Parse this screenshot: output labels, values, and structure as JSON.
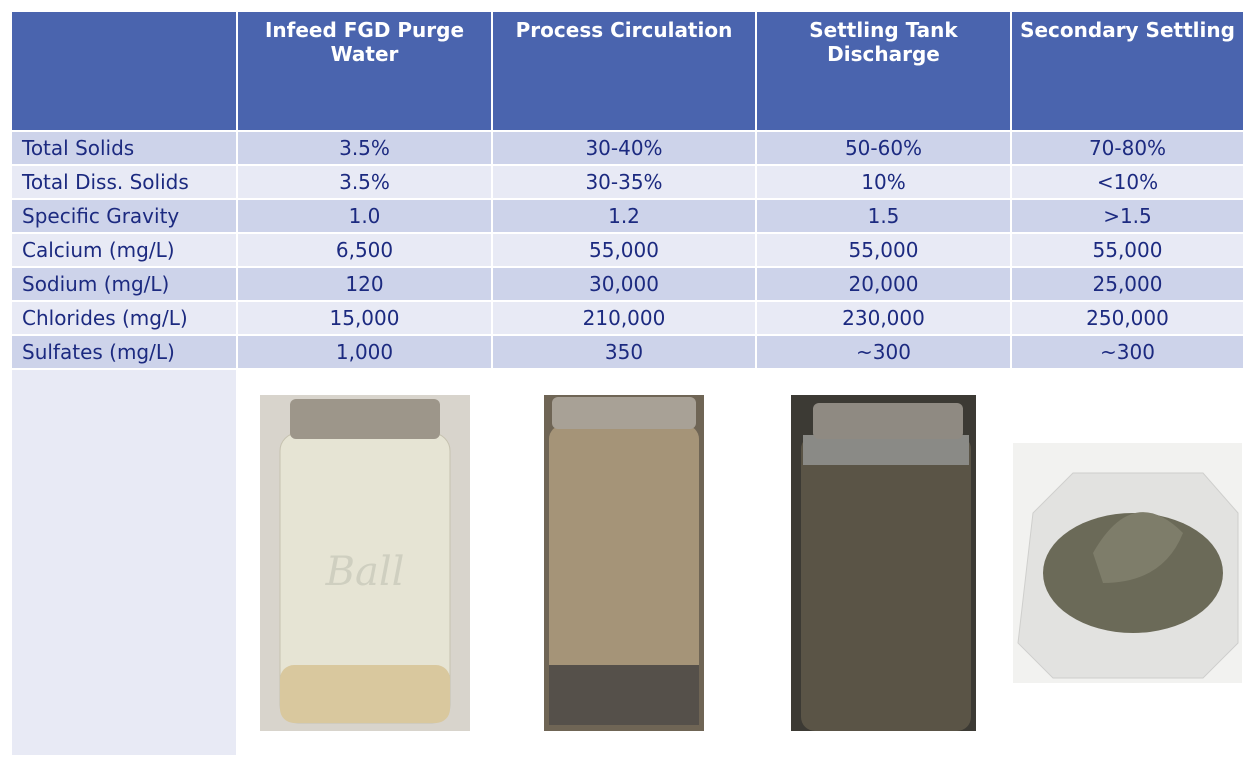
{
  "table": {
    "header": [
      "",
      "Infeed FGD Purge Water",
      "Process Circulation",
      "Settling Tank Discharge",
      "Secondary Settling"
    ],
    "rows": [
      [
        "Total Solids",
        "3.5%",
        "30-40%",
        "50-60%",
        "70-80%"
      ],
      [
        "Total Diss. Solids",
        "3.5%",
        "30-35%",
        "10%",
        "<10%"
      ],
      [
        "Specific Gravity",
        "1.0",
        "1.2",
        "1.5",
        ">1.5"
      ],
      [
        "Calcium (mg/L)",
        "6,500",
        "55,000",
        "55,000",
        "55,000"
      ],
      [
        "Sodium (mg/L)",
        "120",
        "30,000",
        "20,000",
        "25,000"
      ],
      [
        "Chlorides (mg/L)",
        "15,000",
        "210,000",
        "230,000",
        "250,000"
      ],
      [
        "Sulfates (mg/L)",
        "1,000",
        "350",
        "~300",
        "~300"
      ]
    ]
  }
}
